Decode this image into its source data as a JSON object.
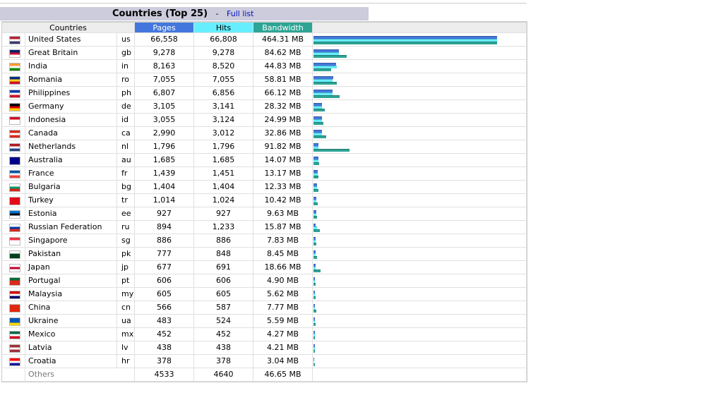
{
  "title": {
    "text": "Countries (Top 25)",
    "separator": "-",
    "link": "Full list"
  },
  "table": {
    "headers": [
      "Countries",
      "Pages",
      "Hits",
      "Bandwidth"
    ],
    "rows": [
      {
        "country": "United States",
        "code": "us",
        "pages": {
          "value": 66558,
          "label": "66,558"
        },
        "hits": {
          "value": 66808,
          "label": "66,808"
        },
        "bandwidth": {
          "value": 464.31,
          "label": "464.31 MB"
        }
      },
      {
        "country": "Great Britain",
        "code": "gb",
        "pages": {
          "value": 9278,
          "label": "9,278"
        },
        "hits": {
          "value": 9278,
          "label": "9,278"
        },
        "bandwidth": {
          "value": 84.62,
          "label": "84.62 MB"
        }
      },
      {
        "country": "India",
        "code": "in",
        "pages": {
          "value": 8163,
          "label": "8,163"
        },
        "hits": {
          "value": 8520,
          "label": "8,520"
        },
        "bandwidth": {
          "value": 44.83,
          "label": "44.83 MB"
        }
      },
      {
        "country": "Romania",
        "code": "ro",
        "pages": {
          "value": 7055,
          "label": "7,055"
        },
        "hits": {
          "value": 7055,
          "label": "7,055"
        },
        "bandwidth": {
          "value": 58.81,
          "label": "58.81 MB"
        }
      },
      {
        "country": "Philippines",
        "code": "ph",
        "pages": {
          "value": 6807,
          "label": "6,807"
        },
        "hits": {
          "value": 6856,
          "label": "6,856"
        },
        "bandwidth": {
          "value": 66.12,
          "label": "66.12 MB"
        }
      },
      {
        "country": "Germany",
        "code": "de",
        "pages": {
          "value": 3105,
          "label": "3,105"
        },
        "hits": {
          "value": 3141,
          "label": "3,141"
        },
        "bandwidth": {
          "value": 28.32,
          "label": "28.32 MB"
        }
      },
      {
        "country": "Indonesia",
        "code": "id",
        "pages": {
          "value": 3055,
          "label": "3,055"
        },
        "hits": {
          "value": 3124,
          "label": "3,124"
        },
        "bandwidth": {
          "value": 24.99,
          "label": "24.99 MB"
        }
      },
      {
        "country": "Canada",
        "code": "ca",
        "pages": {
          "value": 2990,
          "label": "2,990"
        },
        "hits": {
          "value": 3012,
          "label": "3,012"
        },
        "bandwidth": {
          "value": 32.86,
          "label": "32.86 MB"
        }
      },
      {
        "country": "Netherlands",
        "code": "nl",
        "pages": {
          "value": 1796,
          "label": "1,796"
        },
        "hits": {
          "value": 1796,
          "label": "1,796"
        },
        "bandwidth": {
          "value": 91.82,
          "label": "91.82 MB"
        }
      },
      {
        "country": "Australia",
        "code": "au",
        "pages": {
          "value": 1685,
          "label": "1,685"
        },
        "hits": {
          "value": 1685,
          "label": "1,685"
        },
        "bandwidth": {
          "value": 14.07,
          "label": "14.07 MB"
        }
      },
      {
        "country": "France",
        "code": "fr",
        "pages": {
          "value": 1439,
          "label": "1,439"
        },
        "hits": {
          "value": 1451,
          "label": "1,451"
        },
        "bandwidth": {
          "value": 13.17,
          "label": "13.17 MB"
        }
      },
      {
        "country": "Bulgaria",
        "code": "bg",
        "pages": {
          "value": 1404,
          "label": "1,404"
        },
        "hits": {
          "value": 1404,
          "label": "1,404"
        },
        "bandwidth": {
          "value": 12.33,
          "label": "12.33 MB"
        }
      },
      {
        "country": "Turkey",
        "code": "tr",
        "pages": {
          "value": 1014,
          "label": "1,014"
        },
        "hits": {
          "value": 1024,
          "label": "1,024"
        },
        "bandwidth": {
          "value": 10.42,
          "label": "10.42 MB"
        }
      },
      {
        "country": "Estonia",
        "code": "ee",
        "pages": 927,
        "hits": 927,
        "bandwidth": {
          "value": 9.63,
          "label": "9.63 MB"
        }
      },
      {
        "country": "Russian Federation",
        "code": "ru",
        "pages": 894,
        "hits": {
          "value": 1233,
          "label": "1,233"
        },
        "bandwidth": {
          "value": 15.87,
          "label": "15.87 MB"
        }
      },
      {
        "country": "Singapore",
        "code": "sg",
        "pages": 886,
        "hits": 886,
        "bandwidth": {
          "value": 7.83,
          "label": "7.83 MB"
        }
      },
      {
        "country": "Pakistan",
        "code": "pk",
        "pages": 777,
        "hits": 848,
        "bandwidth": {
          "value": 8.45,
          "label": "8.45 MB"
        }
      },
      {
        "country": "Japan",
        "code": "jp",
        "pages": 677,
        "hits": 691,
        "bandwidth": {
          "value": 18.66,
          "label": "18.66 MB"
        }
      },
      {
        "country": "Portugal",
        "code": "pt",
        "pages": 606,
        "hits": 606,
        "bandwidth": {
          "value": 4.9,
          "label": "4.90 MB"
        }
      },
      {
        "country": "Malaysia",
        "code": "my",
        "pages": 605,
        "hits": 605,
        "bandwidth": {
          "value": 5.62,
          "label": "5.62 MB"
        }
      },
      {
        "country": "China",
        "code": "cn",
        "pages": 566,
        "hits": 587,
        "bandwidth": {
          "value": 7.77,
          "label": "7.77 MB"
        }
      },
      {
        "country": "Ukraine",
        "code": "ua",
        "pages": 483,
        "hits": 524,
        "bandwidth": {
          "value": 5.59,
          "label": "5.59 MB"
        }
      },
      {
        "country": "Mexico",
        "code": "mx",
        "pages": 452,
        "hits": 452,
        "bandwidth": {
          "value": 4.27,
          "label": "4.27 MB"
        }
      },
      {
        "country": "Latvia",
        "code": "lv",
        "pages": 438,
        "hits": 438,
        "bandwidth": {
          "value": 4.21,
          "label": "4.21 MB"
        }
      },
      {
        "country": "Croatia",
        "code": "hr",
        "pages": 378,
        "hits": 378,
        "bandwidth": {
          "value": 3.04,
          "label": "3.04 MB"
        }
      }
    ],
    "others": {
      "country": "Others",
      "pages": 4533,
      "hits": 4640,
      "bandwidth": {
        "value": 46.65,
        "label": "46.65 MB"
      }
    }
  }
}
